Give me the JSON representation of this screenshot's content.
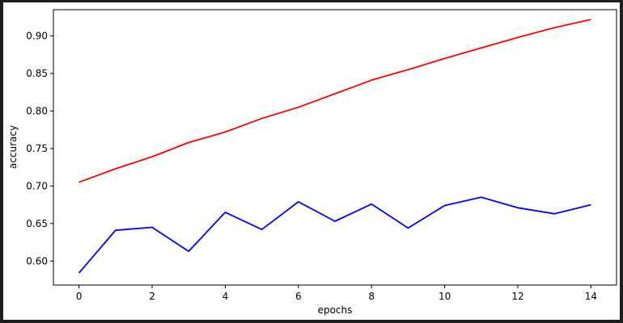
{
  "chart_data": {
    "type": "line",
    "xlabel": "epochs",
    "ylabel": "accuracy",
    "x": [
      0,
      1,
      2,
      3,
      4,
      5,
      6,
      7,
      8,
      9,
      10,
      11,
      12,
      13,
      14
    ],
    "xlim": [
      -0.7,
      14.7
    ],
    "ylim": [
      0.568,
      0.935
    ],
    "xticks": [
      0,
      2,
      4,
      6,
      8,
      10,
      12,
      14
    ],
    "yticks": [
      0.6,
      0.65,
      0.7,
      0.75,
      0.8,
      0.85,
      0.9
    ],
    "xtick_labels": [
      "0",
      "2",
      "4",
      "6",
      "8",
      "10",
      "12",
      "14"
    ],
    "ytick_labels": [
      "0.60",
      "0.65",
      "0.70",
      "0.75",
      "0.80",
      "0.85",
      "0.90"
    ],
    "grid": false,
    "series": [
      {
        "color": "#ff0000",
        "values": [
          0.705,
          0.723,
          0.739,
          0.758,
          0.772,
          0.79,
          0.805,
          0.823,
          0.841,
          0.855,
          0.87,
          0.884,
          0.898,
          0.911,
          0.922
        ]
      },
      {
        "color": "#0000ff",
        "values": [
          0.584,
          0.641,
          0.645,
          0.613,
          0.665,
          0.642,
          0.679,
          0.653,
          0.676,
          0.644,
          0.674,
          0.685,
          0.671,
          0.663,
          0.675
        ]
      }
    ]
  }
}
